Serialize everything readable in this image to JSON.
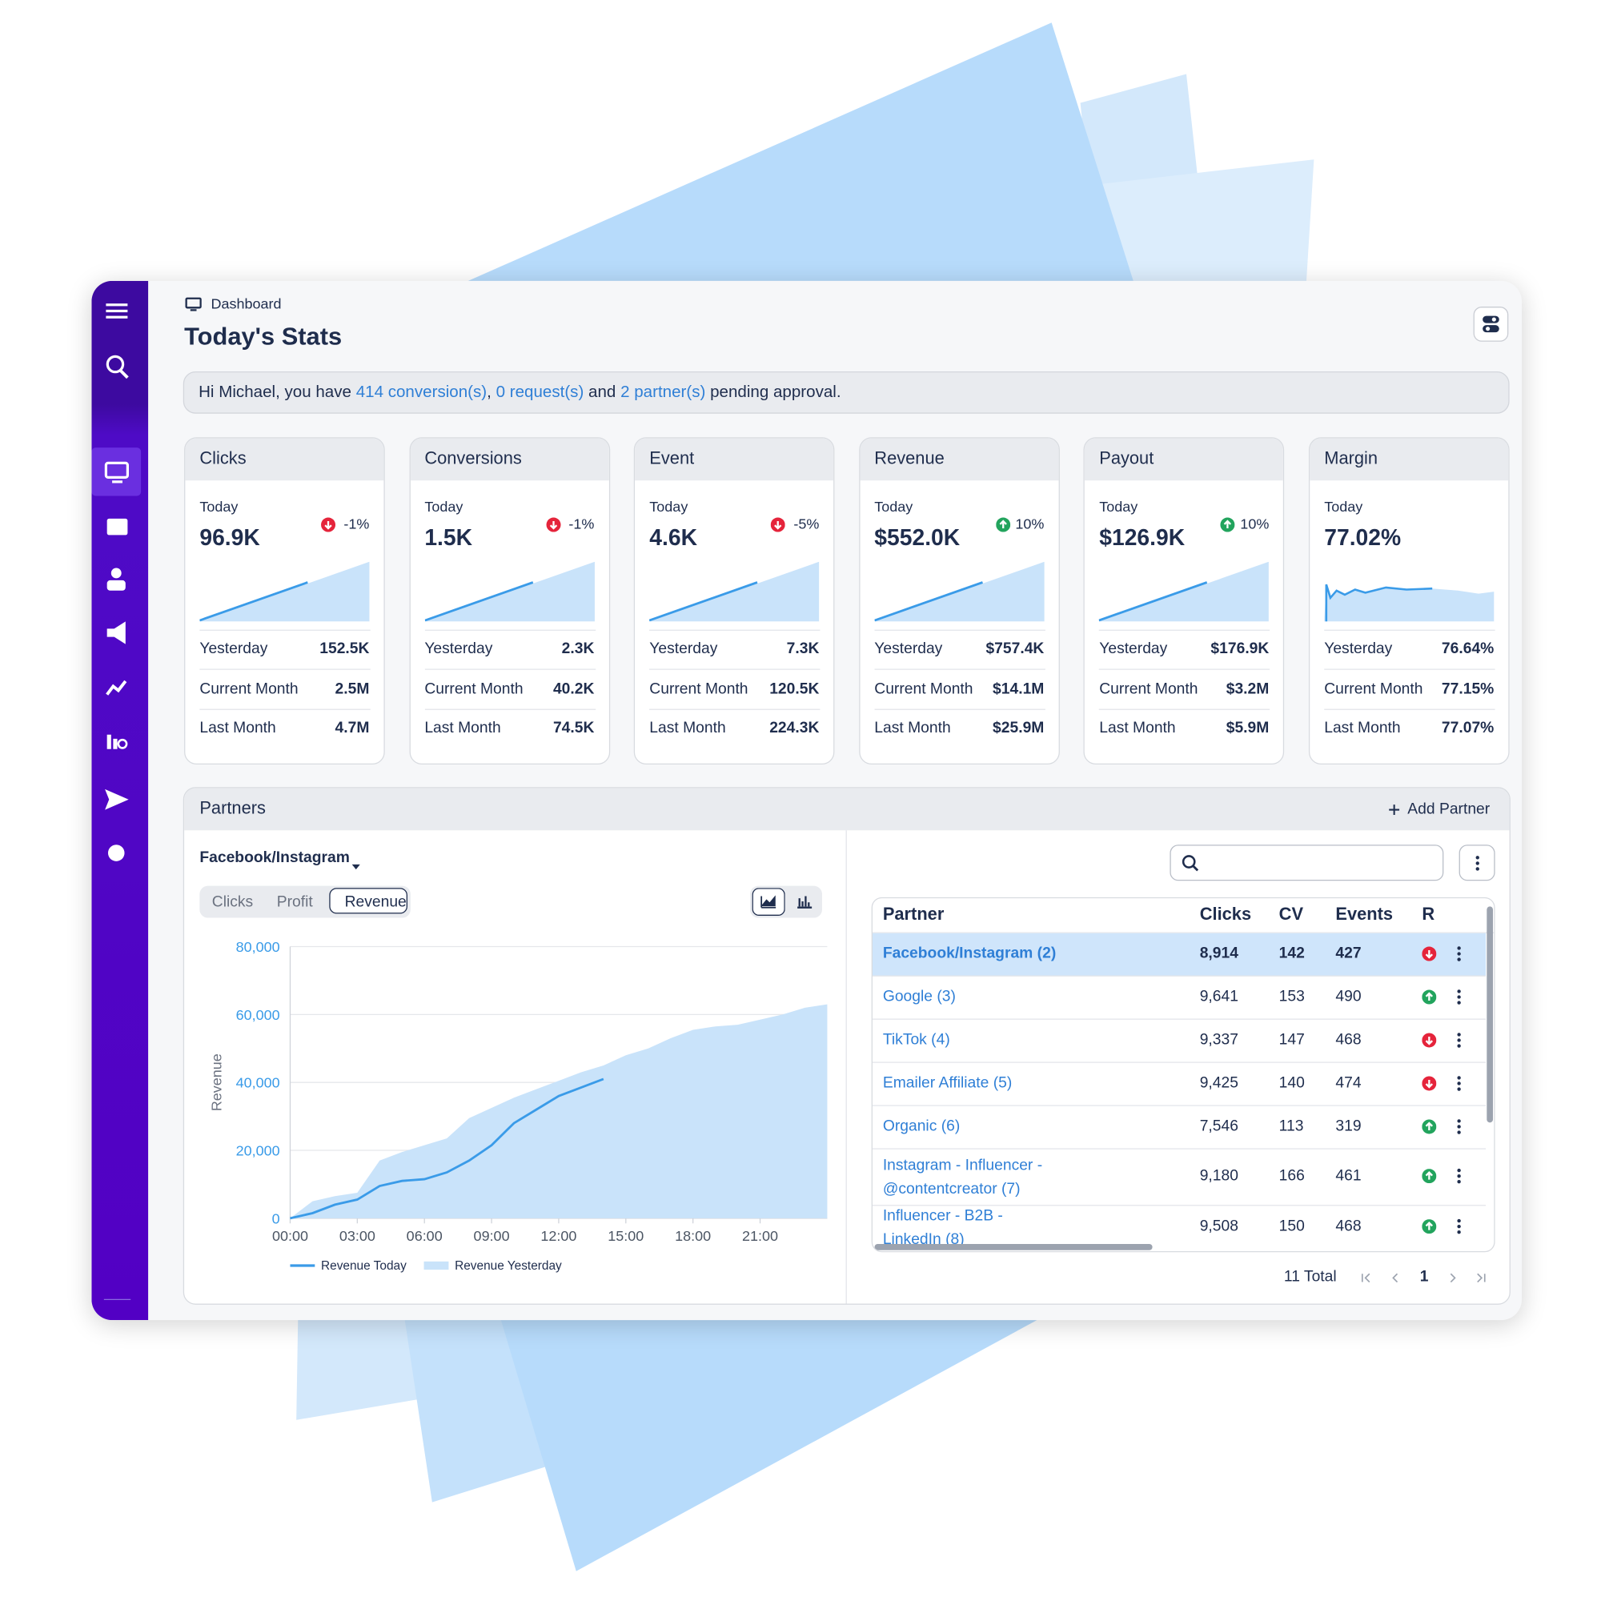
{
  "header": {
    "breadcrumb": "Dashboard",
    "title": "Today's Stats"
  },
  "banner": [
    "Hi Michael, you have ",
    "414 conversion(s)",
    ", ",
    "0 request(s)",
    " and ",
    "2 partner(s)",
    " pending approval."
  ],
  "row_labels": {
    "today": "Today",
    "yesterday": "Yesterday",
    "current_month": "Current Month",
    "last_month": "Last Month"
  },
  "cards": [
    {
      "title": "Clicks",
      "today": "96.9K",
      "change": "-1%",
      "trend": "down",
      "yesterday": "152.5K",
      "current_month": "2.5M",
      "last_month": "4.7M"
    },
    {
      "title": "Conversions",
      "today": "1.5K",
      "change": "-1%",
      "trend": "down",
      "yesterday": "2.3K",
      "current_month": "40.2K",
      "last_month": "74.5K"
    },
    {
      "title": "Event",
      "today": "4.6K",
      "change": "-5%",
      "trend": "down",
      "yesterday": "7.3K",
      "current_month": "120.5K",
      "last_month": "224.3K"
    },
    {
      "title": "Revenue",
      "today": "$552.0K",
      "change": "10%",
      "trend": "up",
      "yesterday": "$757.4K",
      "current_month": "$14.1M",
      "last_month": "$25.9M"
    },
    {
      "title": "Payout",
      "today": "$126.9K",
      "change": "10%",
      "trend": "up",
      "yesterday": "$176.9K",
      "current_month": "$3.2M",
      "last_month": "$5.9M"
    },
    {
      "title": "Margin",
      "today": "77.02%",
      "yesterday": "76.64%",
      "current_month": "77.15%",
      "last_month": "77.07%"
    }
  ],
  "partners": {
    "title": "Partners",
    "add": "Add Partner",
    "selected": "Facebook/Instagram",
    "tabs": [
      "Clicks",
      "Profit",
      "Revenue"
    ],
    "active_tab": 2,
    "table": {
      "columns": [
        "Partner",
        "Clicks",
        "CV",
        "Events",
        "R"
      ],
      "selected_row": 0,
      "rows": [
        [
          "Facebook/Instagram (2)",
          "8,914",
          "142",
          "427"
        ],
        [
          "Google (3)",
          "9,641",
          "153",
          "490"
        ],
        [
          "TikTok (4)",
          "9,337",
          "147",
          "468"
        ],
        [
          "Emailer Affiliate (5)",
          "9,425",
          "140",
          "474"
        ],
        [
          "Organic (6)",
          "7,546",
          "113",
          "319"
        ],
        [
          "Instagram - Influencer - @contentcreator (7)",
          "9,180",
          "166",
          "461"
        ],
        [
          "Influencer - B2B - LinkedIn (8)",
          "9,508",
          "150",
          "468"
        ]
      ],
      "trends": [
        "down",
        "up",
        "down",
        "down",
        "up",
        "up",
        "up"
      ]
    },
    "total": "11 Total",
    "page": "1"
  },
  "chart_data": {
    "type": "line",
    "ylabel": "Revenue",
    "grid": true,
    "x": [
      0,
      1,
      2,
      3,
      4,
      5,
      6,
      7,
      8,
      9,
      10,
      11,
      12,
      13,
      14,
      15,
      16,
      17,
      18,
      19,
      20,
      21,
      22,
      23,
      24
    ],
    "xlim": [
      0,
      24
    ],
    "ylim": [
      0,
      80000
    ],
    "xticks": [
      {
        "value": 0,
        "label": "00:00"
      },
      {
        "value": 3,
        "label": "03:00"
      },
      {
        "value": 6,
        "label": "06:00"
      },
      {
        "value": 9,
        "label": "09:00"
      },
      {
        "value": 12,
        "label": "12:00"
      },
      {
        "value": 15,
        "label": "15:00"
      },
      {
        "value": 18,
        "label": "18:00"
      },
      {
        "value": 21,
        "label": "21:00"
      }
    ],
    "yticks": [
      0,
      {
        "value": 20000,
        "label": "20,000"
      },
      {
        "value": 40000,
        "label": "40,000"
      },
      {
        "value": 60000,
        "label": "60,000"
      },
      {
        "value": 80000,
        "label": "80,000"
      }
    ],
    "series": [
      {
        "name": "Revenue Yesterday",
        "color": "#c9e3fa",
        "style": "area",
        "values": [
          0,
          5000,
          6500,
          7500,
          17000,
          19500,
          21500,
          23500,
          29500,
          32500,
          35500,
          38000,
          40500,
          43000,
          45000,
          48000,
          50000,
          53000,
          55500,
          56500,
          57000,
          58500,
          60000,
          62000,
          63000
        ]
      },
      {
        "name": "Revenue Today",
        "color": "#3a9be8",
        "style": "line",
        "values": [
          0,
          1500,
          4000,
          5500,
          9500,
          11000,
          11500,
          13500,
          17000,
          21500,
          28000,
          32000,
          36000,
          38500,
          41000,
          null,
          null,
          null,
          null,
          null,
          null,
          null,
          null,
          null,
          null
        ]
      }
    ]
  }
}
